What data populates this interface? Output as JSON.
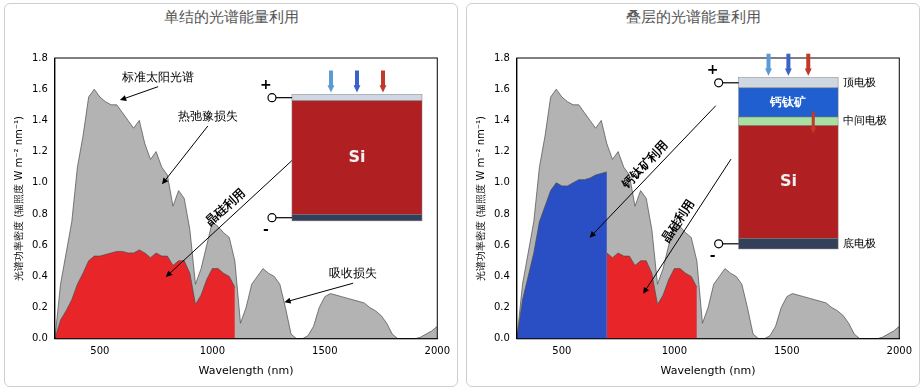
{
  "chart_data": [
    {
      "type": "line",
      "title": "单结的光谱能量利用",
      "x_label": "Wavelength (nm)",
      "y_label": "光谱功率密度 (辐照度 W m⁻² nm⁻¹)",
      "xlim": [
        300,
        2000
      ],
      "xticks": [
        500,
        1000,
        1500,
        2000
      ],
      "ylim": [
        0,
        1.8
      ],
      "yticks": [
        {
          "value": 0,
          "label": "0.0"
        },
        0.2,
        0.4,
        0.6,
        0.8,
        {
          "value": 1,
          "label": "1.0"
        },
        1.2,
        1.4,
        1.6,
        1.8
      ],
      "grid": false,
      "x": [
        300,
        325,
        350,
        375,
        400,
        425,
        450,
        475,
        500,
        525,
        550,
        575,
        600,
        625,
        650,
        675,
        700,
        725,
        750,
        775,
        800,
        825,
        850,
        875,
        900,
        925,
        950,
        975,
        1000,
        1025,
        1050,
        1075,
        1100,
        1125,
        1150,
        1175,
        1200,
        1225,
        1250,
        1275,
        1300,
        1325,
        1350,
        1375,
        1400,
        1425,
        1450,
        1475,
        1500,
        1525,
        1550,
        1575,
        1600,
        1625,
        1650,
        1675,
        1700,
        1725,
        1750,
        1775,
        1800,
        1825,
        1850,
        1875,
        1900,
        1925,
        1950,
        1975,
        2000
      ],
      "series": [
        {
          "name": "标准太阳光谱",
          "color": "#b3b3b3",
          "values": [
            0.0,
            0.35,
            0.55,
            0.75,
            1.1,
            1.3,
            1.55,
            1.6,
            1.55,
            1.52,
            1.5,
            1.5,
            1.45,
            1.4,
            1.35,
            1.4,
            1.25,
            1.15,
            1.2,
            1.1,
            1.05,
            0.85,
            0.95,
            0.9,
            0.7,
            0.35,
            0.45,
            0.6,
            0.75,
            0.72,
            0.68,
            0.65,
            0.5,
            0.1,
            0.2,
            0.35,
            0.4,
            0.45,
            0.42,
            0.4,
            0.35,
            0.2,
            0.03,
            0,
            0,
            0.02,
            0.08,
            0.2,
            0.27,
            0.29,
            0.28,
            0.27,
            0.26,
            0.25,
            0.24,
            0.23,
            0.2,
            0.18,
            0.15,
            0.1,
            0.03,
            0,
            0,
            0,
            0,
            0.01,
            0.03,
            0.05,
            0.08
          ]
        },
        {
          "name": "晶硅利用",
          "color": "#e8262a",
          "values": [
            0,
            0.12,
            0.18,
            0.25,
            0.35,
            0.42,
            0.5,
            0.53,
            0.53,
            0.54,
            0.55,
            0.56,
            0.56,
            0.55,
            0.55,
            0.57,
            0.55,
            0.52,
            0.55,
            0.53,
            0.53,
            0.47,
            0.5,
            0.5,
            0.42,
            0.22,
            0.28,
            0.38,
            0.45,
            0.45,
            0.42,
            0.4,
            0.33,
            null,
            null,
            null,
            null,
            null,
            null,
            null,
            null,
            null,
            null,
            null,
            null,
            null,
            null,
            null,
            null,
            null,
            null,
            null,
            null,
            null,
            null,
            null,
            null,
            null,
            null,
            null,
            null,
            null,
            null,
            null,
            null,
            null,
            null,
            null,
            null
          ]
        }
      ],
      "annotations": [
        "热弛豫损失",
        "吸收损失"
      ],
      "diagram": {
        "absorbers": [
          "Si"
        ],
        "electrodes": [],
        "terminals": [
          "+",
          "-"
        ]
      }
    },
    {
      "type": "line",
      "title": "叠层的光谱能量利用",
      "x_label": "Wavelength (nm)",
      "y_label": "光谱功率密度 (辐照度 W m⁻² nm⁻¹)",
      "xlim": [
        300,
        2000
      ],
      "xticks": [
        500,
        1000,
        1500,
        2000
      ],
      "ylim": [
        0,
        1.8
      ],
      "yticks": [
        {
          "value": 0,
          "label": "0.0"
        },
        0.2,
        0.4,
        0.6,
        0.8,
        {
          "value": 1,
          "label": "1.0"
        },
        1.2,
        1.4,
        1.6,
        1.8
      ],
      "grid": false,
      "x": [
        300,
        325,
        350,
        375,
        400,
        425,
        450,
        475,
        500,
        525,
        550,
        575,
        600,
        625,
        650,
        675,
        700,
        725,
        750,
        775,
        800,
        825,
        850,
        875,
        900,
        925,
        950,
        975,
        1000,
        1025,
        1050,
        1075,
        1100,
        1125,
        1150,
        1175,
        1200,
        1225,
        1250,
        1275,
        1300,
        1325,
        1350,
        1375,
        1400,
        1425,
        1450,
        1475,
        1500,
        1525,
        1550,
        1575,
        1600,
        1625,
        1650,
        1675,
        1700,
        1725,
        1750,
        1775,
        1800,
        1825,
        1850,
        1875,
        1900,
        1925,
        1950,
        1975,
        2000
      ],
      "series": [
        {
          "color": "#b3b3b3",
          "values": [
            0.0,
            0.35,
            0.55,
            0.75,
            1.1,
            1.3,
            1.55,
            1.6,
            1.55,
            1.52,
            1.5,
            1.5,
            1.45,
            1.4,
            1.35,
            1.4,
            1.25,
            1.15,
            1.2,
            1.1,
            1.05,
            0.85,
            0.95,
            0.9,
            0.7,
            0.35,
            0.45,
            0.6,
            0.75,
            0.72,
            0.68,
            0.65,
            0.5,
            0.1,
            0.2,
            0.35,
            0.4,
            0.45,
            0.42,
            0.4,
            0.35,
            0.2,
            0.03,
            0,
            0,
            0.02,
            0.08,
            0.2,
            0.27,
            0.29,
            0.28,
            0.27,
            0.26,
            0.25,
            0.24,
            0.23,
            0.2,
            0.18,
            0.15,
            0.1,
            0.03,
            0,
            0,
            0,
            0,
            0.01,
            0.03,
            0.05,
            0.08
          ]
        },
        {
          "name": "钙钛矿利用",
          "color": "#2a4fc4",
          "values": [
            0,
            0.25,
            0.4,
            0.55,
            0.75,
            0.85,
            0.95,
            1.0,
            0.98,
            0.98,
            1.0,
            1.02,
            1.02,
            1.03,
            1.05,
            1.06,
            1.07,
            null,
            null,
            null,
            null,
            null,
            null,
            null,
            null,
            null,
            null,
            null,
            null,
            null,
            null,
            null,
            null,
            null,
            null,
            null,
            null,
            null,
            null,
            null,
            null,
            null,
            null,
            null,
            null,
            null,
            null,
            null,
            null,
            null,
            null,
            null,
            null,
            null,
            null,
            null,
            null,
            null,
            null,
            null,
            null,
            null,
            null,
            null,
            null,
            null,
            null,
            null,
            null
          ]
        },
        {
          "name": "晶硅利用",
          "color": "#e8262a",
          "values": [
            null,
            null,
            null,
            null,
            null,
            null,
            null,
            null,
            null,
            null,
            null,
            null,
            null,
            null,
            null,
            null,
            0.55,
            0.52,
            0.55,
            0.53,
            0.53,
            0.47,
            0.5,
            0.5,
            0.42,
            0.22,
            0.28,
            0.38,
            0.45,
            0.45,
            0.42,
            0.4,
            0.33,
            null,
            null,
            null,
            null,
            null,
            null,
            null,
            null,
            null,
            null,
            null,
            null,
            null,
            null,
            null,
            null,
            null,
            null,
            null,
            null,
            null,
            null,
            null,
            null,
            null,
            null,
            null,
            null,
            null,
            null,
            null,
            null,
            null,
            null,
            null,
            null
          ]
        }
      ],
      "annotations": [],
      "diagram": {
        "absorbers": [
          "钙钛矿",
          "Si"
        ],
        "electrodes": [
          "顶电极",
          "中间电极",
          "底电极"
        ],
        "terminals": [
          "+",
          "-"
        ]
      }
    }
  ]
}
